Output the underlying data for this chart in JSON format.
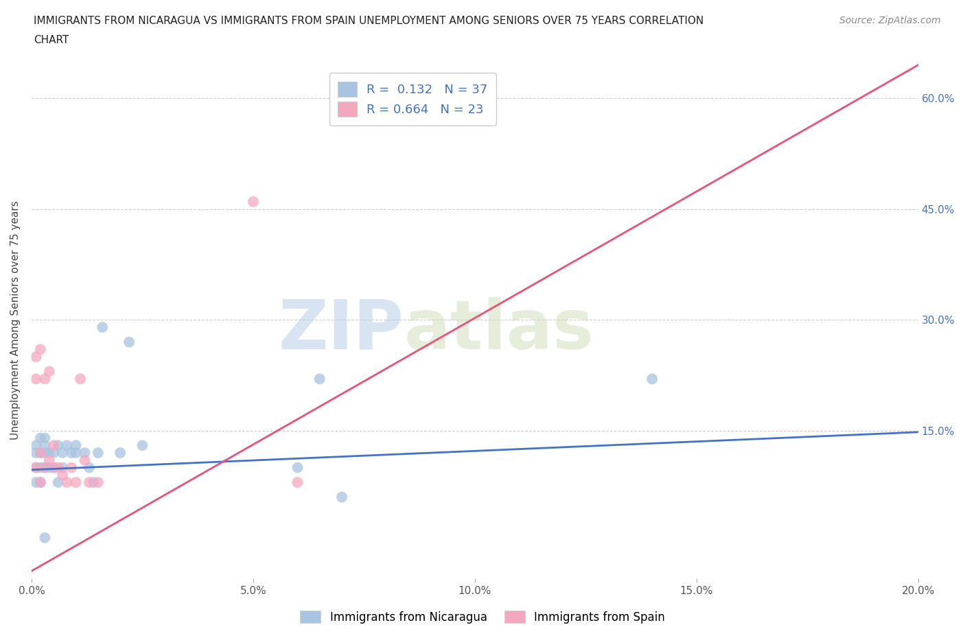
{
  "title_line1": "IMMIGRANTS FROM NICARAGUA VS IMMIGRANTS FROM SPAIN UNEMPLOYMENT AMONG SENIORS OVER 75 YEARS CORRELATION",
  "title_line2": "CHART",
  "source": "Source: ZipAtlas.com",
  "ylabel": "Unemployment Among Seniors over 75 years",
  "xlabel_ticks": [
    "0.0%",
    "5.0%",
    "10.0%",
    "15.0%",
    "20.0%"
  ],
  "ylabel_ticks": [
    "15.0%",
    "30.0%",
    "45.0%",
    "60.0%"
  ],
  "xlim": [
    0.0,
    0.2
  ],
  "ylim": [
    -0.05,
    0.65
  ],
  "ytick_vals": [
    0.15,
    0.3,
    0.45,
    0.6
  ],
  "nicaragua_color": "#a8c4e0",
  "spain_color": "#f4a8c0",
  "nicaragua_line_color": "#4472c4",
  "spain_line_color": "#e8527a",
  "nicaragua_R": 0.132,
  "nicaragua_N": 37,
  "spain_R": 0.664,
  "spain_N": 23,
  "legend_label_nicaragua": "Immigrants from Nicaragua",
  "legend_label_spain": "Immigrants from Spain",
  "watermark_zip": "ZIP",
  "watermark_atlas": "atlas",
  "nicaragua_line_x": [
    0.0,
    0.2
  ],
  "nicaragua_line_y": [
    0.097,
    0.148
  ],
  "spain_line_x": [
    0.0,
    0.2
  ],
  "spain_line_y": [
    -0.04,
    0.645
  ],
  "nicaragua_x": [
    0.001,
    0.001,
    0.001,
    0.001,
    0.002,
    0.002,
    0.002,
    0.002,
    0.003,
    0.003,
    0.003,
    0.003,
    0.004,
    0.004,
    0.005,
    0.005,
    0.006,
    0.006,
    0.007,
    0.007,
    0.008,
    0.009,
    0.01,
    0.01,
    0.012,
    0.013,
    0.014,
    0.015,
    0.016,
    0.02,
    0.022,
    0.025,
    0.06,
    0.065,
    0.07,
    0.14,
    0.003
  ],
  "nicaragua_y": [
    0.1,
    0.12,
    0.08,
    0.13,
    0.1,
    0.14,
    0.08,
    0.12,
    0.12,
    0.13,
    0.1,
    0.14,
    0.1,
    0.12,
    0.12,
    0.1,
    0.13,
    0.08,
    0.1,
    0.12,
    0.13,
    0.12,
    0.13,
    0.12,
    0.12,
    0.1,
    0.08,
    0.12,
    0.29,
    0.12,
    0.27,
    0.13,
    0.1,
    0.22,
    0.06,
    0.22,
    0.005
  ],
  "spain_x": [
    0.001,
    0.001,
    0.001,
    0.002,
    0.002,
    0.002,
    0.003,
    0.003,
    0.004,
    0.004,
    0.005,
    0.005,
    0.006,
    0.007,
    0.008,
    0.009,
    0.01,
    0.011,
    0.012,
    0.013,
    0.015,
    0.05,
    0.06
  ],
  "spain_y": [
    0.1,
    0.22,
    0.25,
    0.12,
    0.26,
    0.08,
    0.22,
    0.1,
    0.11,
    0.23,
    0.1,
    0.13,
    0.1,
    0.09,
    0.08,
    0.1,
    0.08,
    0.22,
    0.11,
    0.08,
    0.08,
    0.46,
    0.08
  ]
}
